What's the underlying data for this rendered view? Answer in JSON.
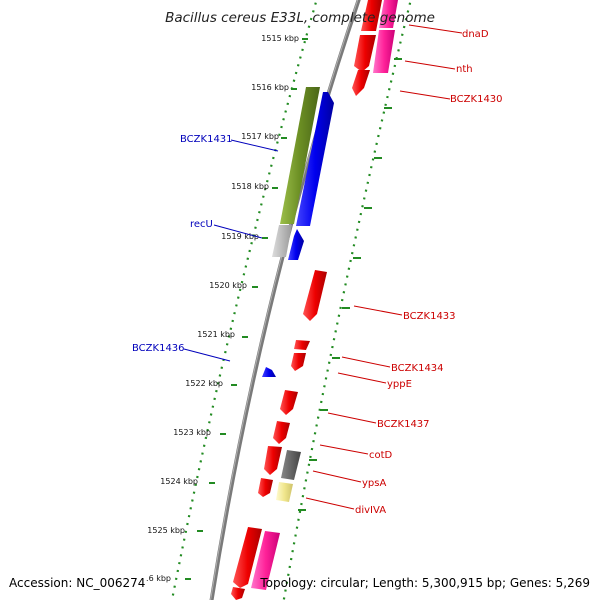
{
  "title": "Bacillus cereus E33L, complete genome",
  "footer": {
    "accession": "Accession: NC_006274",
    "topology": "Topology: circular; Length: 5,300,915 bp; Genes: 5,269"
  },
  "ticks": [
    "1515 kbp",
    "1516 kbp",
    "1517 kbp",
    "1518 kbp",
    "1519 kbp",
    "1520 kbp",
    "1521 kbp",
    "1522 kbp",
    "1523 kbp",
    "1524 kbp",
    "1525 kbp",
    ".6 kbp"
  ],
  "genes_forward": [
    "dnaD",
    "nth",
    "BCZK1430",
    "BCZK1433",
    "BCZK1434",
    "yppE",
    "BCZK1437",
    "cotD",
    "ypsA",
    "divIVA"
  ],
  "genes_reverse": [
    "BCZK1431",
    "recU",
    "BCZK1436"
  ],
  "colors": {
    "backbone": "#7a7a7a",
    "forward_cds": "#ee0000",
    "reverse_cds": "#0000ee",
    "rrna": "#ff2299",
    "trna": "#6b8e23",
    "other": "#666666",
    "misc": "#f0e68c",
    "tick": "#228b22",
    "label_forward": "#cc0000",
    "label_reverse": "#0000bb"
  }
}
